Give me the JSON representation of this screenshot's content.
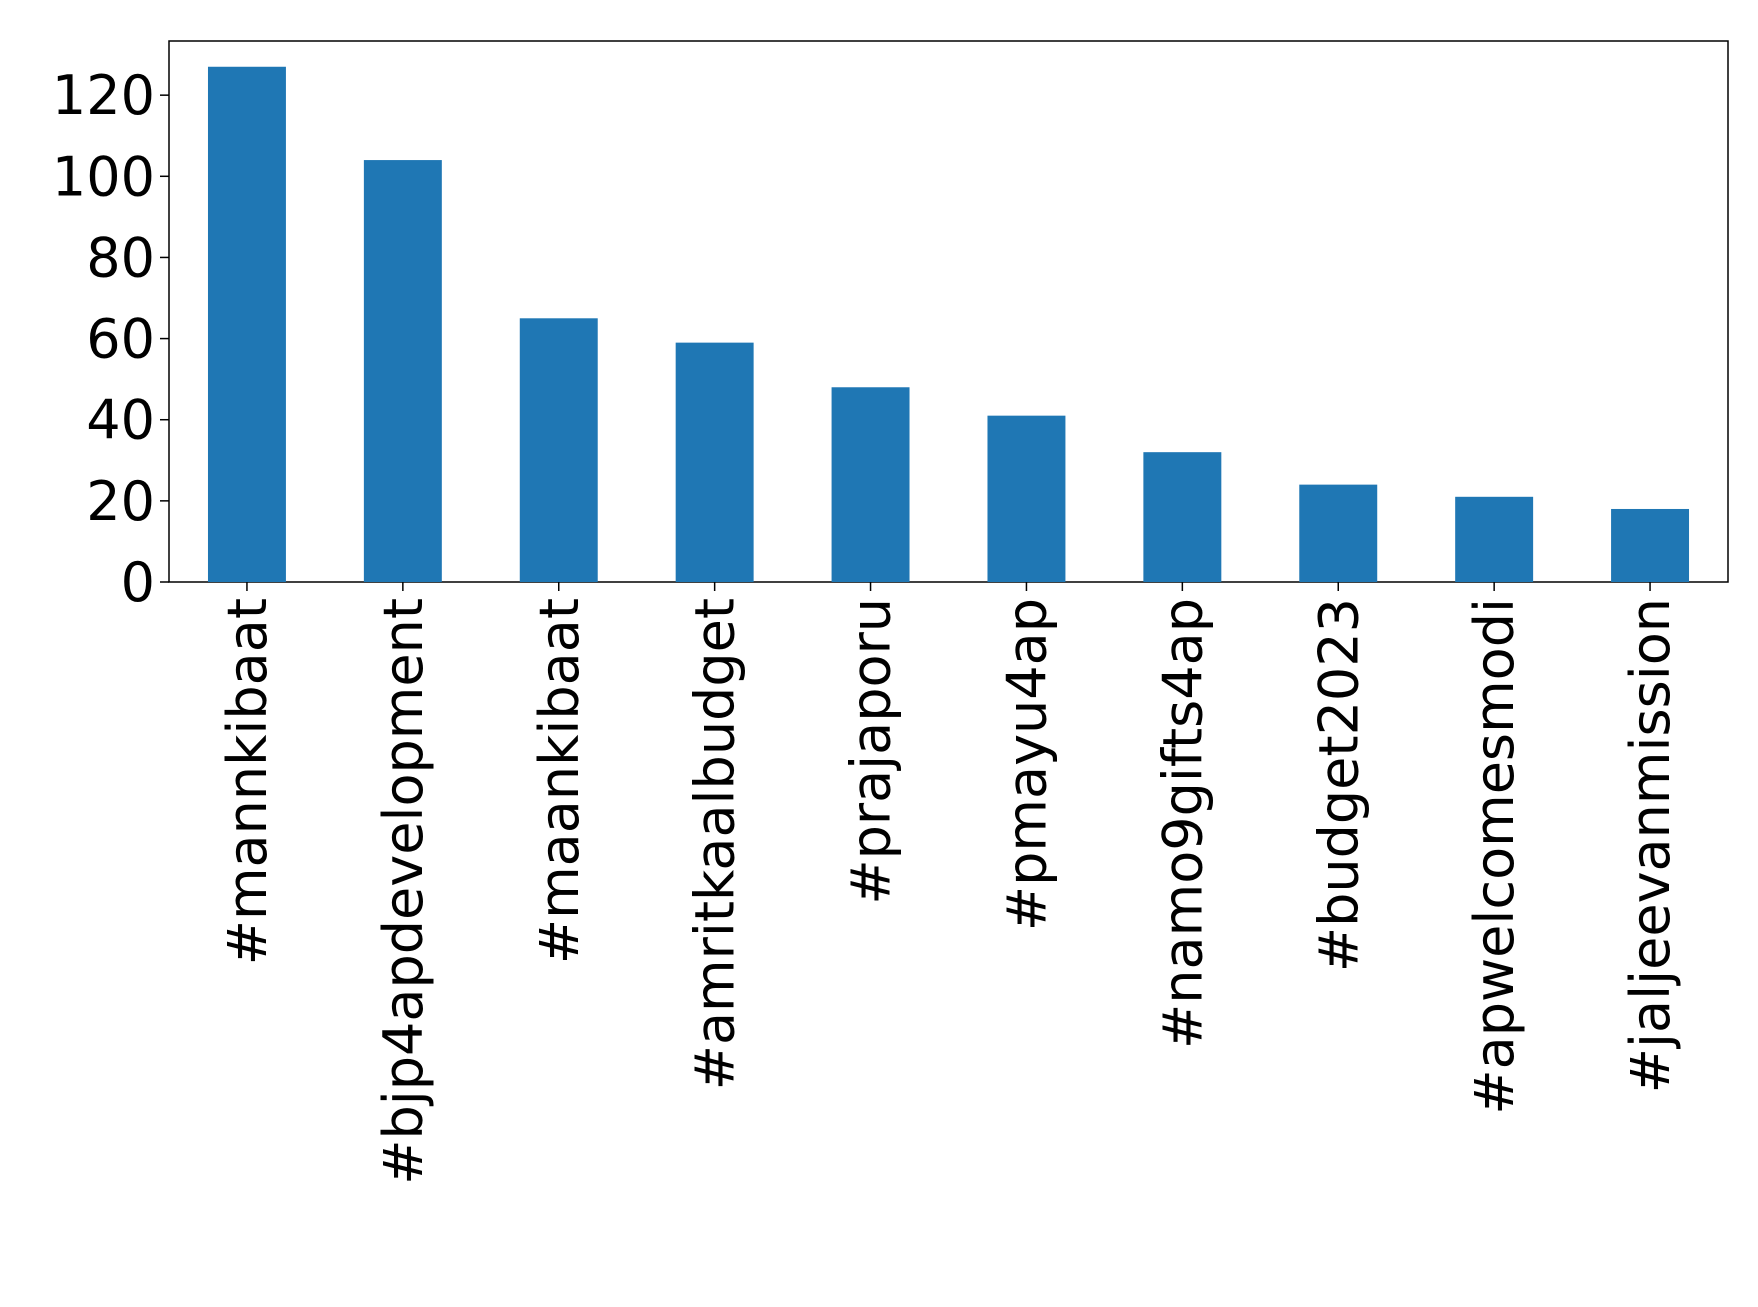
{
  "chart_data": {
    "type": "bar",
    "categories": [
      "#mannkibaat",
      "#bjp4apdevelopment",
      "#maankibaat",
      "#amritkaalbudget",
      "#prajaporu",
      "#pmayu4ap",
      "#namo9gifts4ap",
      "#budget2023",
      "#apwelcomesmodi",
      "#jaljeevanmission"
    ],
    "values": [
      127,
      104,
      65,
      59,
      48,
      41,
      32,
      24,
      21,
      18
    ],
    "color": "#1f77b4",
    "ylim": [
      0,
      133.35
    ],
    "yticks": [
      0,
      20,
      40,
      60,
      80,
      100,
      120
    ],
    "grid": false
  }
}
